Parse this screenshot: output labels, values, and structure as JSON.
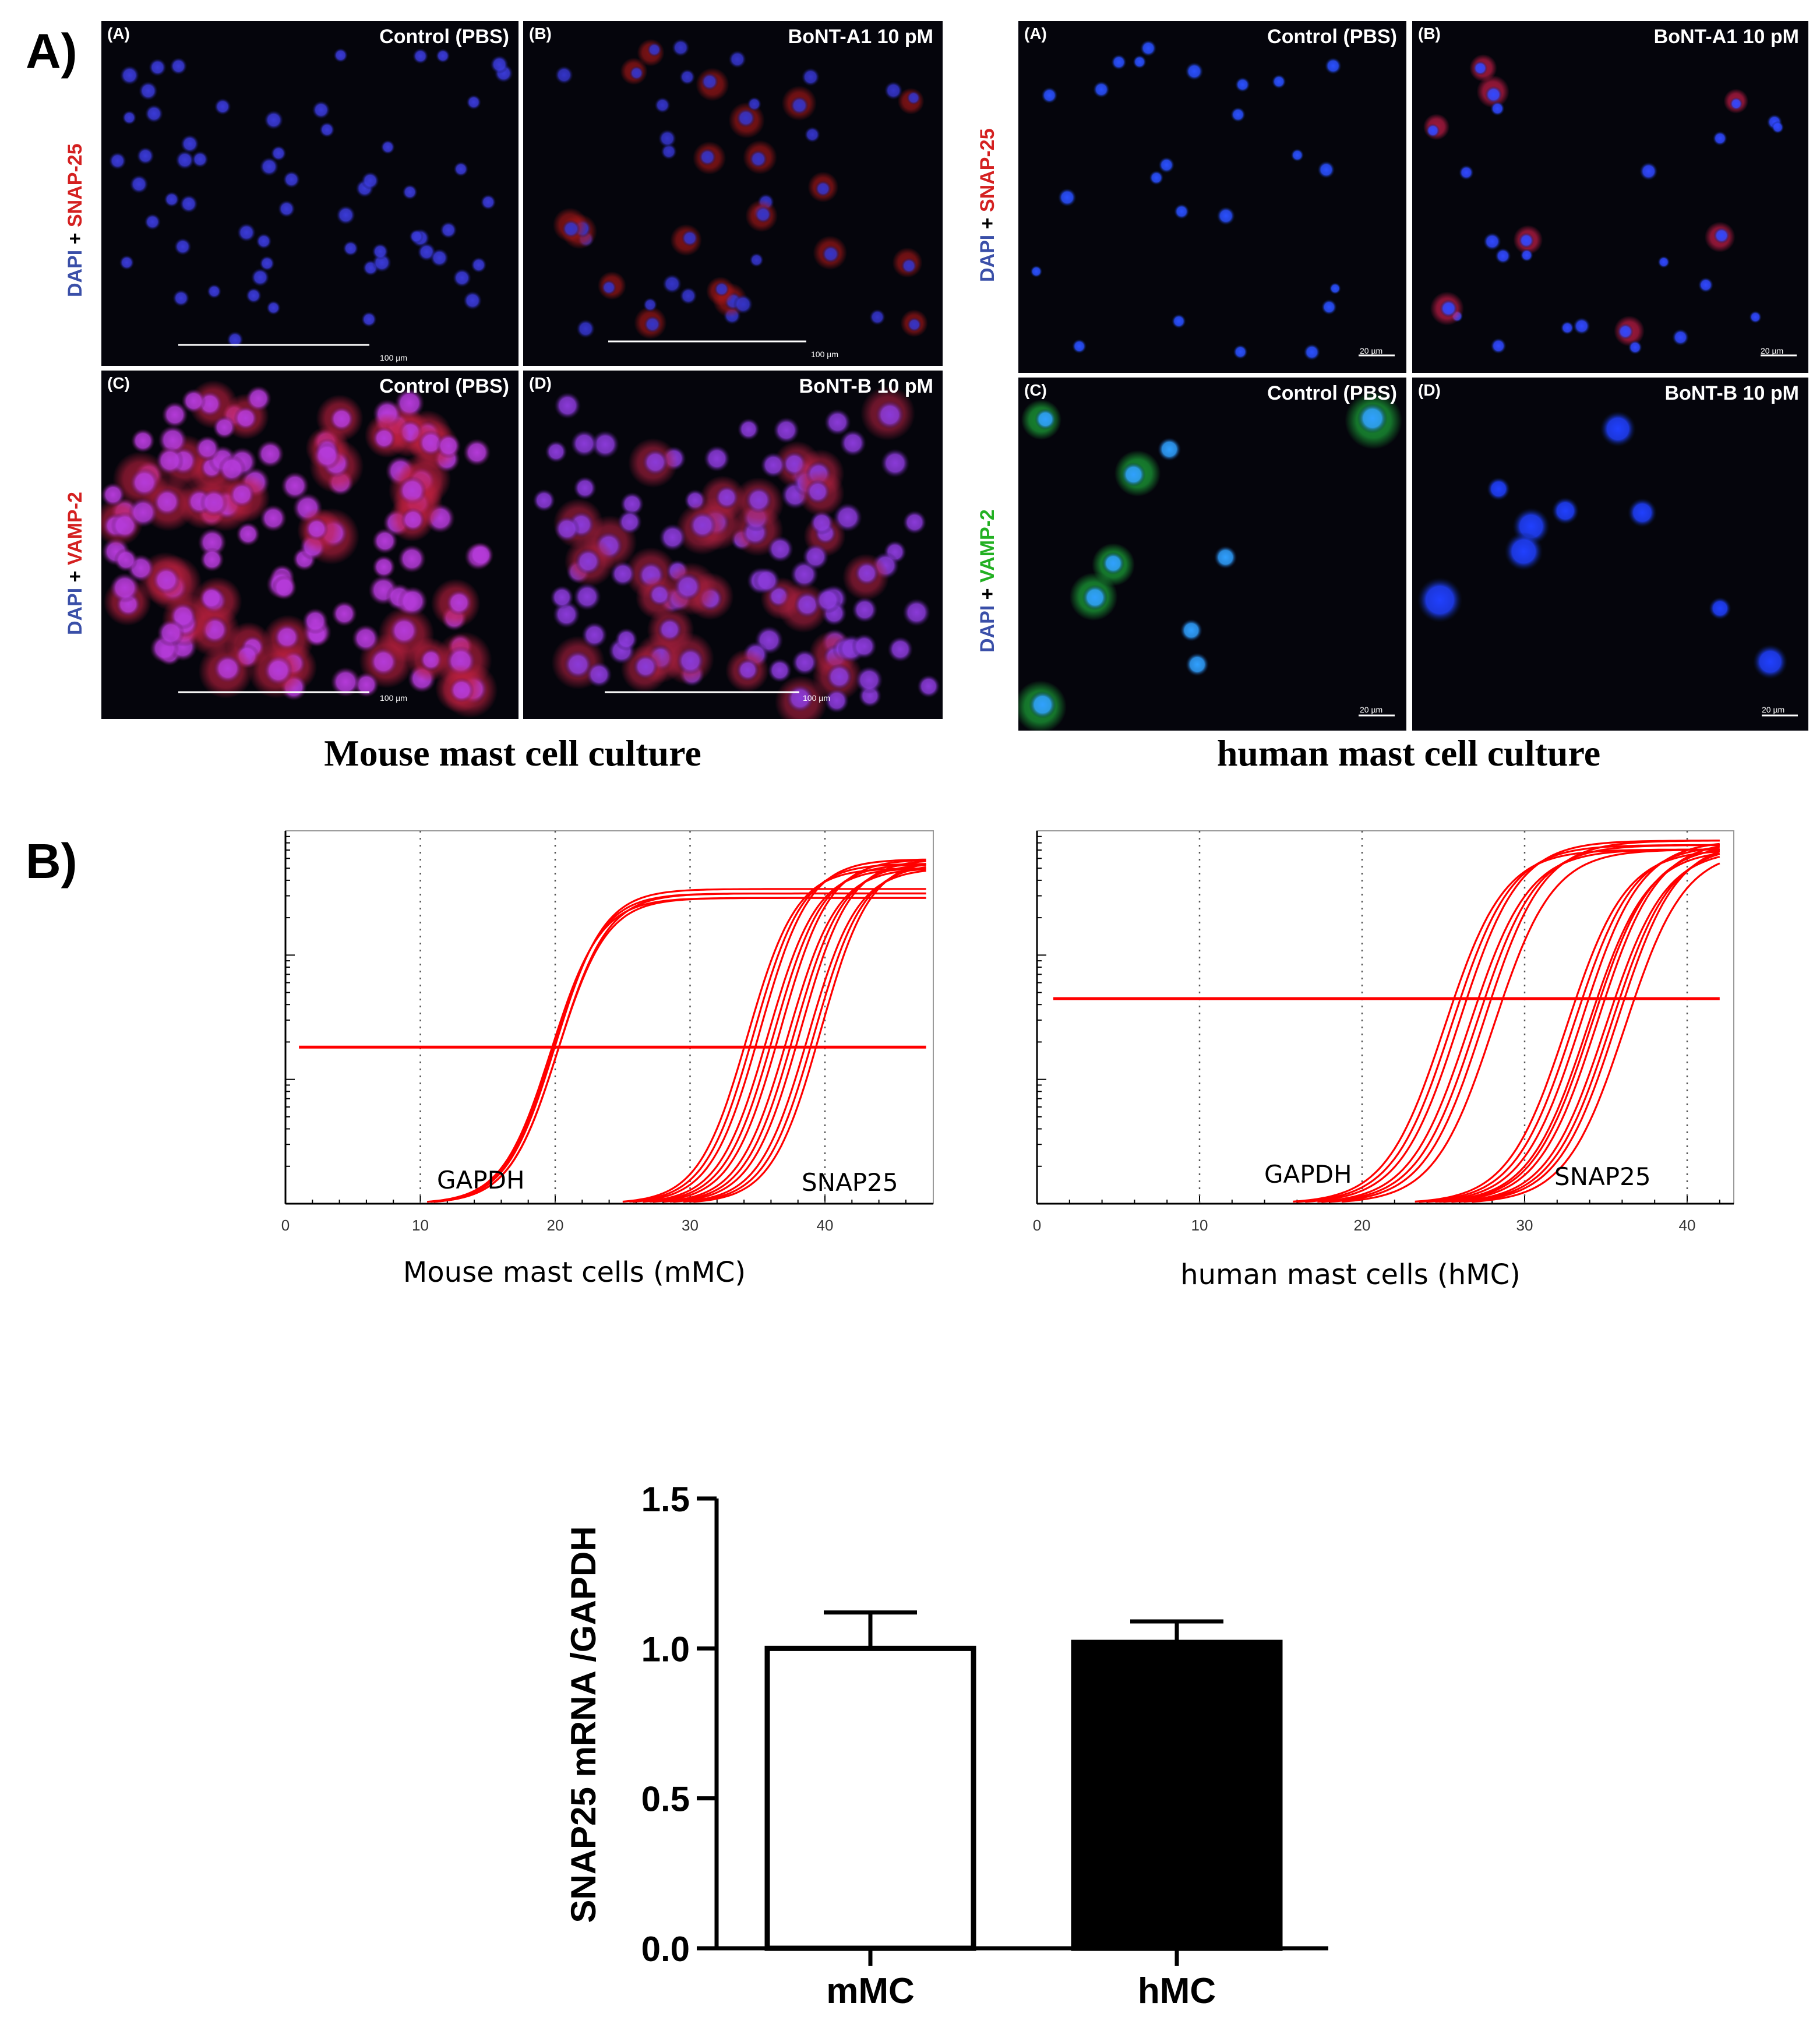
{
  "panel_a": {
    "letter": "A)",
    "mouse": {
      "caption": "Mouse mast cell culture",
      "row1_stain": {
        "first": "DAPI",
        "plus": "+",
        "second": "SNAP-25",
        "second_color": "#d42020"
      },
      "row2_stain": {
        "first": "DAPI",
        "plus": "+",
        "second": "VAMP-2",
        "second_color": "#d42020"
      },
      "images": [
        {
          "sub": "(A)",
          "cond": "Control (PBS)",
          "scale": "100 µm"
        },
        {
          "sub": "(B)",
          "cond": "BoNT-A1 10 pM",
          "scale": "100 µm"
        },
        {
          "sub": "(C)",
          "cond": "Control (PBS)",
          "scale": "100 µm"
        },
        {
          "sub": "(D)",
          "cond": "BoNT-B 10 pM",
          "scale": "100 µm"
        }
      ]
    },
    "human": {
      "caption": "human mast cell culture",
      "row1_stain": {
        "first": "DAPI",
        "plus": "+",
        "second": "SNAP-25",
        "second_color": "#d42020"
      },
      "row2_stain": {
        "first": "DAPI",
        "plus": "+",
        "second": "VAMP-2",
        "second_color": "#22b022"
      },
      "images": [
        {
          "sub": "(A)",
          "cond": "Control (PBS)",
          "scale": "20 µm"
        },
        {
          "sub": "(B)",
          "cond": "BoNT-A1 10 pM",
          "scale": "20 µm"
        },
        {
          "sub": "(C)",
          "cond": "Control (PBS)",
          "scale": "20 µm"
        },
        {
          "sub": "(D)",
          "cond": "BoNT-B 10 pM",
          "scale": "20 µm"
        }
      ]
    },
    "dapi_color": "#3a4fa8"
  },
  "panel_b": {
    "letter": "B)",
    "line_color": "#ff0000",
    "chart_data": [
      {
        "type": "line",
        "xlabel": "Mouse mast cells (mMC)",
        "xlim": [
          0,
          47.5
        ],
        "x_ticks": [
          0,
          10,
          20,
          30,
          40
        ],
        "gridlines_x": [
          10,
          20,
          30,
          40
        ],
        "threshold": 0.42,
        "series": [
          {
            "name": "GAPDH",
            "ct_values": [
              19.6,
              19.8,
              20.0,
              20.1,
              20.2
            ],
            "plateau": 0.82
          },
          {
            "name": "SNAP25",
            "ct_values": [
              34.5,
              35.0,
              35.5,
              36.0,
              36.5,
              37.0,
              37.5,
              38.0,
              38.5,
              39.0,
              39.5,
              40.0
            ],
            "plateau": 0.9
          }
        ]
      },
      {
        "type": "line",
        "xlabel": "human mast cells (hMC)",
        "xlim": [
          0,
          42
        ],
        "x_ticks": [
          0,
          10,
          20,
          30,
          40
        ],
        "gridlines_x": [
          10,
          20,
          30,
          40
        ],
        "threshold": 0.55,
        "series": [
          {
            "name": "GAPDH",
            "ct_values": [
              24.5,
              25.0,
              25.5,
              26.0,
              26.5,
              27.0,
              27.5
            ],
            "plateau": 0.95
          },
          {
            "name": "SNAP25",
            "ct_values": [
              32.0,
              32.5,
              33.0,
              33.3,
              33.6,
              34.0,
              34.4,
              34.8,
              35.2,
              35.6
            ],
            "plateau": 0.95
          }
        ]
      }
    ]
  },
  "bar_chart": {
    "chart_data": {
      "type": "bar",
      "categories": [
        "mMC",
        "hMC"
      ],
      "values": [
        1.0,
        1.02
      ],
      "errors": [
        0.12,
        0.07
      ],
      "fills": [
        "#ffffff",
        "#000000"
      ],
      "ylabel": "SNAP25 mRNA /GAPDH",
      "ylim": [
        0,
        1.5
      ],
      "y_ticks": [
        "0.0",
        "0.5",
        "1.0",
        "1.5"
      ]
    }
  }
}
